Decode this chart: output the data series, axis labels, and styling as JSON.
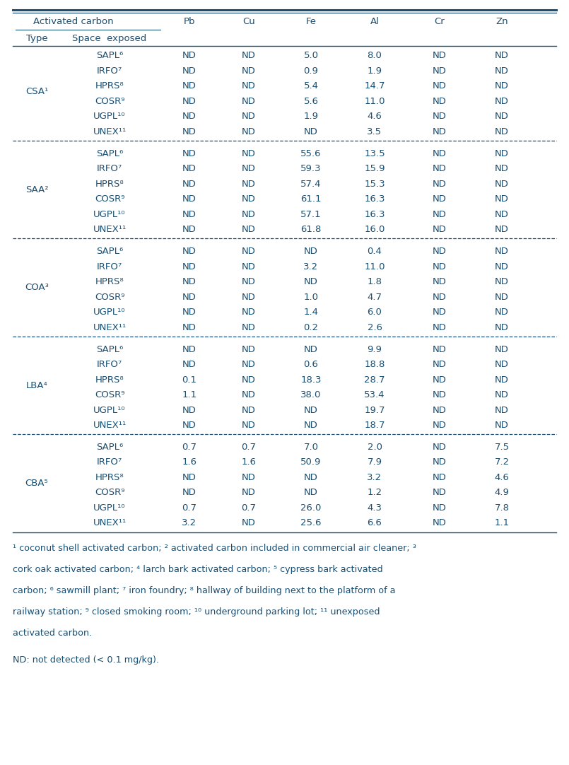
{
  "groups": [
    {
      "type": "CSA¹",
      "rows": [
        [
          "SAPL⁶",
          "ND",
          "ND",
          "5.0",
          "8.0",
          "ND",
          "ND"
        ],
        [
          "IRFO⁷",
          "ND",
          "ND",
          "0.9",
          "1.9",
          "ND",
          "ND"
        ],
        [
          "HPRS⁸",
          "ND",
          "ND",
          "5.4",
          "14.7",
          "ND",
          "ND"
        ],
        [
          "COSR⁹",
          "ND",
          "ND",
          "5.6",
          "11.0",
          "ND",
          "ND"
        ],
        [
          "UGPL¹⁰",
          "ND",
          "ND",
          "1.9",
          "4.6",
          "ND",
          "ND"
        ],
        [
          "UNEX¹¹",
          "ND",
          "ND",
          "ND",
          "3.5",
          "ND",
          "ND"
        ]
      ]
    },
    {
      "type": "SAA²",
      "rows": [
        [
          "SAPL⁶",
          "ND",
          "ND",
          "55.6",
          "13.5",
          "ND",
          "ND"
        ],
        [
          "IRFO⁷",
          "ND",
          "ND",
          "59.3",
          "15.9",
          "ND",
          "ND"
        ],
        [
          "HPRS⁸",
          "ND",
          "ND",
          "57.4",
          "15.3",
          "ND",
          "ND"
        ],
        [
          "COSR⁹",
          "ND",
          "ND",
          "61.1",
          "16.3",
          "ND",
          "ND"
        ],
        [
          "UGPL¹⁰",
          "ND",
          "ND",
          "57.1",
          "16.3",
          "ND",
          "ND"
        ],
        [
          "UNEX¹¹",
          "ND",
          "ND",
          "61.8",
          "16.0",
          "ND",
          "ND"
        ]
      ]
    },
    {
      "type": "COA³",
      "rows": [
        [
          "SAPL⁶",
          "ND",
          "ND",
          "ND",
          "0.4",
          "ND",
          "ND"
        ],
        [
          "IRFO⁷",
          "ND",
          "ND",
          "3.2",
          "11.0",
          "ND",
          "ND"
        ],
        [
          "HPRS⁸",
          "ND",
          "ND",
          "ND",
          "1.8",
          "ND",
          "ND"
        ],
        [
          "COSR⁹",
          "ND",
          "ND",
          "1.0",
          "4.7",
          "ND",
          "ND"
        ],
        [
          "UGPL¹⁰",
          "ND",
          "ND",
          "1.4",
          "6.0",
          "ND",
          "ND"
        ],
        [
          "UNEX¹¹",
          "ND",
          "ND",
          "0.2",
          "2.6",
          "ND",
          "ND"
        ]
      ]
    },
    {
      "type": "LBA⁴",
      "rows": [
        [
          "SAPL⁶",
          "ND",
          "ND",
          "ND",
          "9.9",
          "ND",
          "ND"
        ],
        [
          "IRFO⁷",
          "ND",
          "ND",
          "0.6",
          "18.8",
          "ND",
          "ND"
        ],
        [
          "HPRS⁸",
          "0.1",
          "ND",
          "18.3",
          "28.7",
          "ND",
          "ND"
        ],
        [
          "COSR⁹",
          "1.1",
          "ND",
          "38.0",
          "53.4",
          "ND",
          "ND"
        ],
        [
          "UGPL¹⁰",
          "ND",
          "ND",
          "ND",
          "19.7",
          "ND",
          "ND"
        ],
        [
          "UNEX¹¹",
          "ND",
          "ND",
          "ND",
          "18.7",
          "ND",
          "ND"
        ]
      ]
    },
    {
      "type": "CBA⁵",
      "rows": [
        [
          "SAPL⁶",
          "0.7",
          "0.7",
          "7.0",
          "2.0",
          "ND",
          "7.5"
        ],
        [
          "IRFO⁷",
          "1.6",
          "1.6",
          "50.9",
          "7.9",
          "ND",
          "7.2"
        ],
        [
          "HPRS⁸",
          "ND",
          "ND",
          "ND",
          "3.2",
          "ND",
          "4.6"
        ],
        [
          "COSR⁹",
          "ND",
          "ND",
          "ND",
          "1.2",
          "ND",
          "4.9"
        ],
        [
          "UGPL¹⁰",
          "0.7",
          "0.7",
          "26.0",
          "4.3",
          "ND",
          "7.8"
        ],
        [
          "UNEX¹¹",
          "3.2",
          "ND",
          "25.6",
          "6.6",
          "ND",
          "1.1"
        ]
      ]
    }
  ],
  "col_headers": [
    "Pb",
    "Cu",
    "Fe",
    "Al",
    "Cr",
    "Zn"
  ],
  "footnote_line1": "¹ coconut shell activated carbon; ² activated carbon included in commercial air cleaner; ³ cork oak activated carbon; ⁴ larch bark activated carbon; ⁵ cypress bark activated carbon; ⁶ sawmill plant; ⁷ iron foundry; ⁸ hallway of building next to the platform of a railway station; ⁹ closed smoking room; ¹⁰ underground parking lot; ¹¹ unexposed activated carbon.",
  "nd_note": "ND: not detected (< 0.1 mg/kg).",
  "text_color": "#1a4f72",
  "line_color": "#1a4f72",
  "font_size": 9.5,
  "footnote_font_size": 9.2
}
